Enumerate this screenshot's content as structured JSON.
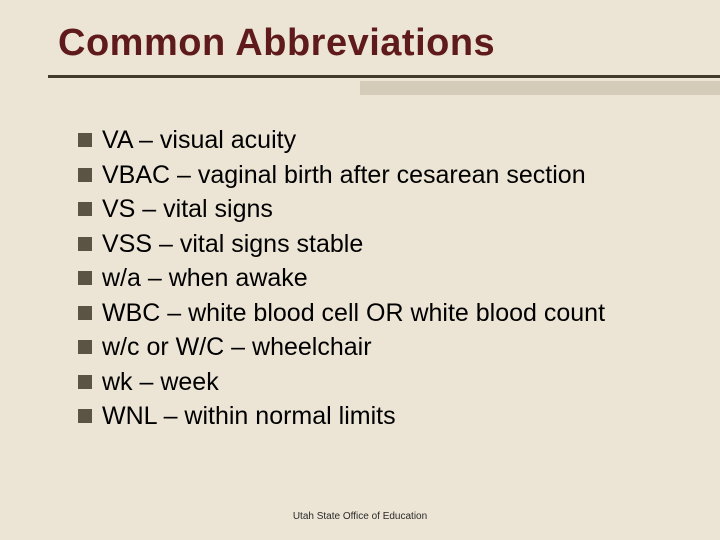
{
  "title_color": "#5f1b1b",
  "background_color": "#ece5d6",
  "bullet_color": "#5b5344",
  "rule_dark_color": "#433a2e",
  "rule_light_color": "#c8bfa8",
  "title_fontsize": 38,
  "item_fontsize": 25,
  "footer_fontsize": 10,
  "title": "Common Abbreviations",
  "items": [
    "VA – visual acuity",
    "VBAC – vaginal birth after cesarean section",
    "VS – vital signs",
    "VSS – vital signs stable",
    "w/a – when awake",
    "WBC – white blood cell OR white blood count",
    "w/c or W/C – wheelchair",
    "wk – week",
    "WNL – within normal limits"
  ],
  "footer": "Utah State Office of Education"
}
